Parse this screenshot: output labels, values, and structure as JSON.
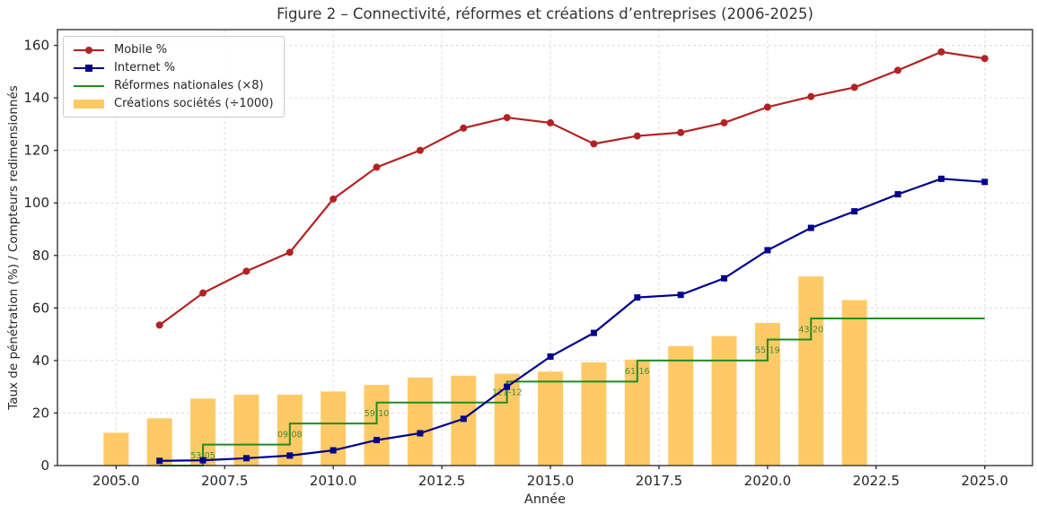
{
  "figure": {
    "title": "Figure 2 – Connectivité, réformes et créations d’entreprises (2006-2025)",
    "xlabel": "Année",
    "ylabel": "Taux de pénétration (%) / Compteurs redimensionnés"
  },
  "legend": {
    "position": "upper left",
    "items": [
      {
        "label": "Mobile %",
        "swatch": "line-circle",
        "color": "#B22222"
      },
      {
        "label": "Internet %",
        "swatch": "line-square",
        "color": "#00008B"
      },
      {
        "label": "Réformes nationales (×8)",
        "swatch": "line",
        "color": "#228B22"
      },
      {
        "label": "Créations sociétés (÷1000)",
        "swatch": "patch",
        "color": "#FFC966"
      }
    ]
  },
  "chart_data": {
    "type": "combo: line + step + bar",
    "title": "Figure 2 – Connectivité, réformes et créations d’entreprises (2006-2025)",
    "xlabel": "Année",
    "ylabel": "Taux de pénétration (%) / Compteurs redimensionnés",
    "x_years": [
      2006,
      2007,
      2008,
      2009,
      2010,
      2011,
      2012,
      2013,
      2014,
      2015,
      2016,
      2017,
      2018,
      2019,
      2020,
      2021,
      2022,
      2023,
      2024,
      2025
    ],
    "series": [
      {
        "name": "Mobile %",
        "type": "line",
        "marker": "circle",
        "color": "#B22222",
        "values": [
          53.5,
          65.7,
          74.0,
          81.2,
          101.5,
          113.6,
          120.0,
          128.5,
          132.5,
          130.5,
          122.5,
          125.5,
          126.8,
          130.5,
          136.5,
          140.5,
          144.0,
          150.5,
          157.5,
          155.0
        ]
      },
      {
        "name": "Internet %",
        "type": "line",
        "marker": "square",
        "color": "#00008B",
        "values": [
          1.8,
          2.0,
          2.8,
          3.8,
          5.8,
          9.7,
          12.3,
          17.8,
          30.0,
          41.5,
          50.5,
          64.0,
          65.0,
          71.3,
          82.0,
          90.5,
          96.8,
          103.3,
          109.2,
          108.0
        ]
      },
      {
        "name": "Réformes nationales (×8)",
        "type": "step",
        "color": "#228B22",
        "values": [
          0,
          8,
          8,
          16,
          16,
          24,
          24,
          24,
          32,
          32,
          32,
          40,
          40,
          40,
          48,
          56,
          56,
          56,
          56,
          56
        ]
      }
    ],
    "bars": {
      "name": "Créations sociétés (÷1000)",
      "color": "#FFC966",
      "categories": [
        2005,
        2006,
        2007,
        2008,
        2009,
        2010,
        2011,
        2012,
        2013,
        2014,
        2015,
        2016,
        2017,
        2018,
        2019,
        2020,
        2021,
        2022
      ],
      "values": [
        12.5,
        18.0,
        25.5,
        27.0,
        27.0,
        28.2,
        30.7,
        33.5,
        34.2,
        35.0,
        35.8,
        39.3,
        40.3,
        45.5,
        49.3,
        54.3,
        72.0,
        63.0
      ]
    },
    "annotations": [
      {
        "label": "53-05",
        "year": 2007,
        "y_mid": 4,
        "color": "#3E8E3E"
      },
      {
        "label": "09-08",
        "year": 2009,
        "y_mid": 12,
        "color": "#3E8E3E"
      },
      {
        "label": "59-10",
        "year": 2011,
        "y_mid": 20,
        "color": "#3E8E3E"
      },
      {
        "label": "121-12",
        "year": 2014,
        "y_mid": 28,
        "color": "#3E8E3E"
      },
      {
        "label": "61-16",
        "year": 2017,
        "y_mid": 36,
        "color": "#3E8E3E"
      },
      {
        "label": "55-19",
        "year": 2020,
        "y_mid": 44,
        "color": "#3E8E3E"
      },
      {
        "label": "43-20",
        "year": 2021,
        "y_mid": 52,
        "color": "#3E8E3E"
      }
    ],
    "xticks": [
      {
        "label": "2005.0",
        "value": 2005
      },
      {
        "label": "2007.5",
        "value": 2007.5
      },
      {
        "label": "2010.0",
        "value": 2010
      },
      {
        "label": "2012.5",
        "value": 2012.5
      },
      {
        "label": "2015.0",
        "value": 2015
      },
      {
        "label": "2017.5",
        "value": 2017.5
      },
      {
        "label": "2020.0",
        "value": 2020
      },
      {
        "label": "2022.5",
        "value": 2022.5
      },
      {
        "label": "2025.0",
        "value": 2025
      }
    ],
    "yticks": [
      0,
      20,
      40,
      60,
      80,
      100,
      120,
      140,
      160
    ],
    "xlim": [
      2003.65,
      2026.1
    ],
    "ylim": [
      0,
      166
    ],
    "grid": true,
    "grid_color": "#dcdcdc",
    "spine_color": "#262626",
    "legend_position": "upper left"
  }
}
